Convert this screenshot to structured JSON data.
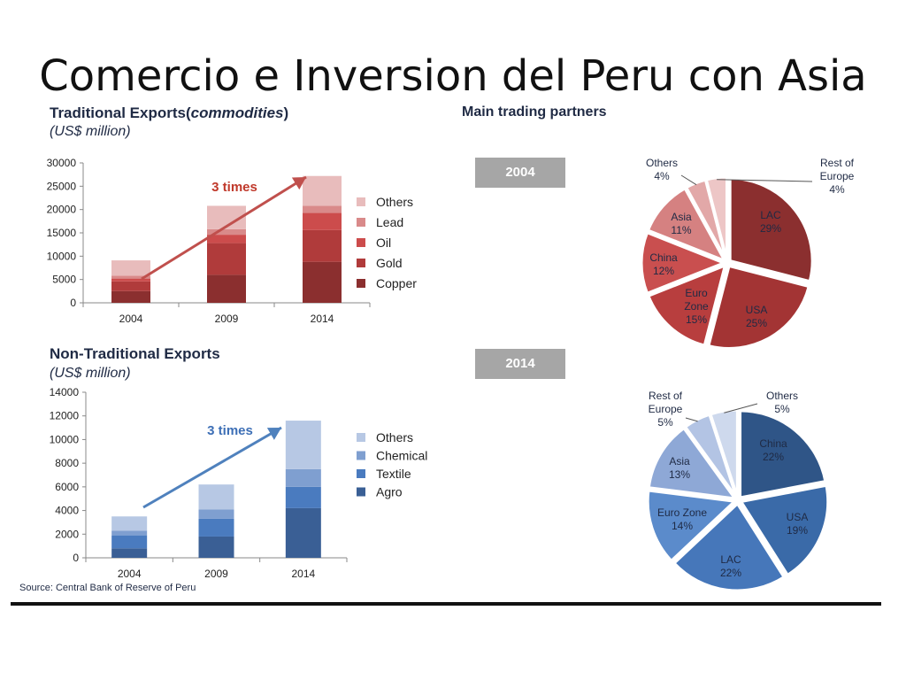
{
  "title": "Comercio e Inversion del Peru con Asia",
  "headers": {
    "traditional_title_prefix": "Traditional Exports(",
    "traditional_title_italic": "commodities",
    "traditional_title_suffix": ")",
    "traditional_unit": "(US$ million)",
    "non_traditional_title": "Non-Traditional Exports",
    "non_traditional_unit": "(US$ million)",
    "partners_title": "Main trading partners",
    "year_2004": "2004",
    "year_2014": "2014"
  },
  "source": "Source: Central Bank of Reserve of Peru",
  "chart_data": [
    {
      "type": "bar",
      "stacked": true,
      "categories": [
        "2004",
        "2009",
        "2014"
      ],
      "series": [
        {
          "name": "Copper",
          "values": [
            2500,
            6000,
            8800
          ],
          "color": "#8b2f2f"
        },
        {
          "name": "Gold",
          "values": [
            2100,
            6800,
            6800
          ],
          "color": "#b03b3b"
        },
        {
          "name": "Oil",
          "values": [
            600,
            1800,
            3700
          ],
          "color": "#cc4c4c"
        },
        {
          "name": "Lead",
          "values": [
            600,
            1200,
            1500
          ],
          "color": "#d98a8a"
        },
        {
          "name": "Others",
          "values": [
            3300,
            5000,
            6400
          ],
          "color": "#e8bcbc"
        }
      ],
      "yticks": [
        0,
        5000,
        10000,
        15000,
        20000,
        25000,
        30000
      ],
      "ylim": [
        0,
        30000
      ],
      "annotation": "3 times",
      "annotation_color": "#c0392b",
      "arrow_color": "#c0504d"
    },
    {
      "type": "bar",
      "stacked": true,
      "categories": [
        "2004",
        "2009",
        "2014"
      ],
      "series": [
        {
          "name": "Agro",
          "values": [
            800,
            1800,
            4200
          ],
          "color": "#3a5f95"
        },
        {
          "name": "Textile",
          "values": [
            1100,
            1500,
            1800
          ],
          "color": "#4a7bbf"
        },
        {
          "name": "Chemical",
          "values": [
            400,
            800,
            1500
          ],
          "color": "#7f9fd0"
        },
        {
          "name": "Others",
          "values": [
            1200,
            2100,
            4100
          ],
          "color": "#b7c8e4"
        }
      ],
      "yticks": [
        0,
        2000,
        4000,
        6000,
        8000,
        10000,
        12000,
        14000
      ],
      "ylim": [
        0,
        14000
      ],
      "annotation": "3 times",
      "annotation_color": "#3d6fb6",
      "arrow_color": "#4f81bd"
    },
    {
      "type": "pie",
      "year": "2004",
      "slices": [
        {
          "label": "LAC",
          "value": 29,
          "text": "29%",
          "color": "#8b2f2f"
        },
        {
          "label": "USA",
          "value": 25,
          "text": "25%",
          "color": "#a33434"
        },
        {
          "label": "Euro Zone",
          "value": 15,
          "text": "15%",
          "color": "#b83e3e"
        },
        {
          "label": "China",
          "value": 12,
          "text": "12%",
          "color": "#c94f4f"
        },
        {
          "label": "Asia",
          "value": 11,
          "text": "11%",
          "color": "#d58181"
        },
        {
          "label": "Others",
          "value": 4,
          "text": "4%",
          "color": "#e2a8a8"
        },
        {
          "label": "Rest of Europe",
          "value": 4,
          "text": "4%",
          "color": "#edc6c6"
        }
      ]
    },
    {
      "type": "pie",
      "year": "2014",
      "slices": [
        {
          "label": "China",
          "value": 22,
          "text": "22%",
          "color": "#2f5587"
        },
        {
          "label": "USA",
          "value": 19,
          "text": "19%",
          "color": "#3a6aa8"
        },
        {
          "label": "LAC",
          "value": 22,
          "text": "22%",
          "color": "#4677ba"
        },
        {
          "label": "Euro Zone",
          "value": 14,
          "text": "14%",
          "color": "#5b8bcb"
        },
        {
          "label": "Asia",
          "value": 13,
          "text": "13%",
          "color": "#8ea8d6"
        },
        {
          "label": "Rest of Europe",
          "value": 5,
          "text": "5%",
          "color": "#b3c4e4"
        },
        {
          "label": "Others",
          "value": 5,
          "text": "5%",
          "color": "#ced9ed"
        }
      ]
    }
  ]
}
